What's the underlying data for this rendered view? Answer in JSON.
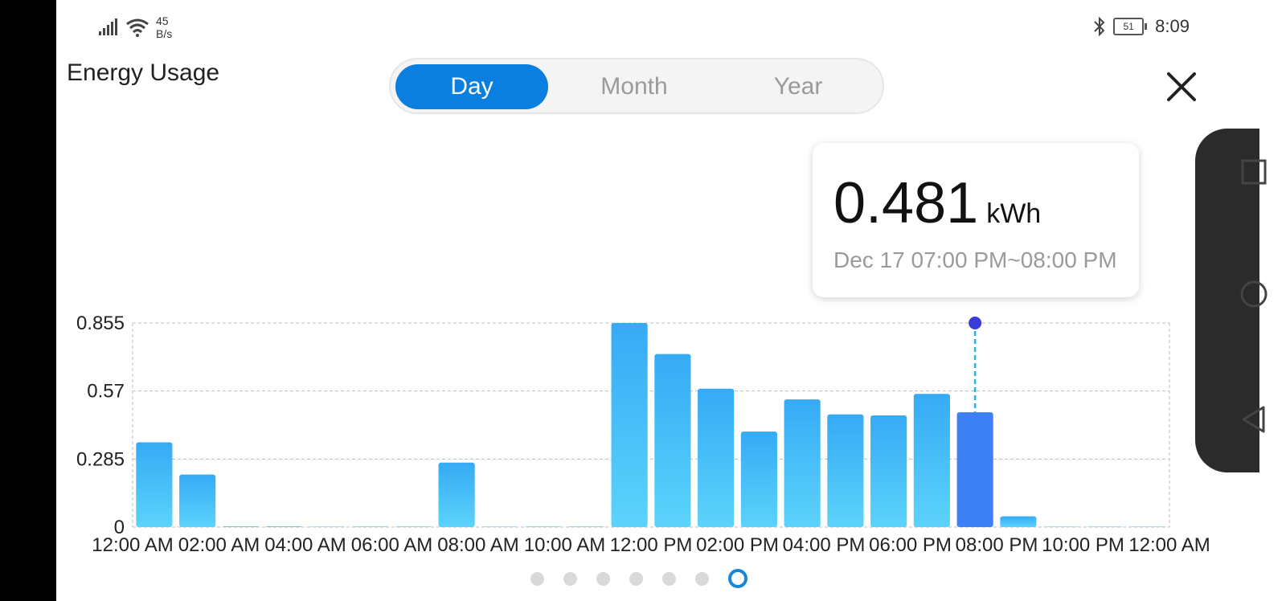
{
  "status_bar": {
    "net_speed_value": "45",
    "net_speed_unit": "B/s",
    "battery": "51",
    "time": "8:09",
    "icons": [
      "signal-icon",
      "wifi-icon",
      "bluetooth-icon",
      "battery-icon"
    ]
  },
  "header": {
    "title": "Energy Usage",
    "tabs": [
      {
        "label": "Day",
        "active": true
      },
      {
        "label": "Month",
        "active": false
      },
      {
        "label": "Year",
        "active": false
      }
    ],
    "close_icon": "close-icon"
  },
  "tooltip": {
    "value": "0.481",
    "unit": "kWh",
    "range": "Dec 17 07:00 PM~08:00 PM"
  },
  "chart_data": {
    "type": "bar",
    "y_ticks": [
      "0",
      "0.285",
      "0.57",
      "0.855"
    ],
    "ylim": [
      0,
      0.855
    ],
    "x_ticks": [
      "12:00 AM",
      "02:00 AM",
      "04:00 AM",
      "06:00 AM",
      "08:00 AM",
      "10:00 AM",
      "12:00 PM",
      "02:00 PM",
      "04:00 PM",
      "06:00 PM",
      "08:00 PM",
      "10:00 PM",
      "12:00 AM"
    ],
    "hours": [
      0,
      1,
      2,
      3,
      4,
      5,
      6,
      7,
      8,
      9,
      10,
      11,
      12,
      13,
      14,
      15,
      16,
      17,
      18,
      19,
      20,
      21,
      22,
      23
    ],
    "values": [
      0.355,
      0.22,
      0.003,
      0.003,
      0.0,
      0.002,
      0.002,
      0.27,
      0.0,
      0.002,
      0.002,
      0.855,
      0.725,
      0.58,
      0.4,
      0.535,
      0.472,
      0.468,
      0.558,
      0.481,
      0.045,
      0.0,
      0.0,
      0.0
    ],
    "selected_index": 19,
    "grid": true,
    "colors": {
      "bar_top": "#36aaf5",
      "bar_bottom": "#5cd3fb",
      "selected": "#3d80f5",
      "marker": "#3b3bd8",
      "marker_line": "#2bb0e0",
      "grid": "#bdbdbd"
    }
  },
  "pager": {
    "count": 7,
    "active_index": 6
  },
  "nav": {
    "icons": [
      "recent-apps-icon",
      "home-icon",
      "back-icon"
    ]
  }
}
